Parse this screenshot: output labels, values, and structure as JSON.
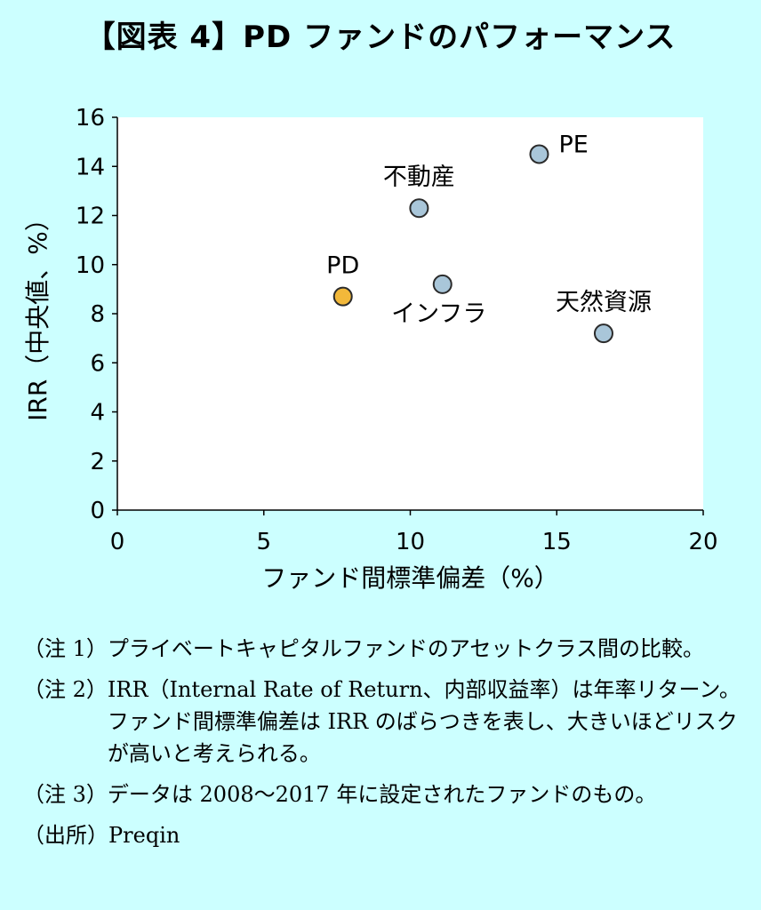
{
  "title": "【図表 4】PD ファンドのパフォーマンス",
  "chart_data": {
    "type": "scatter",
    "xlabel": "ファンド間標準偏差（%）",
    "ylabel": "IRR（中央値、%）",
    "xlim": [
      0,
      20
    ],
    "ylim": [
      0,
      16
    ],
    "xticks": [
      0,
      5,
      10,
      15,
      20
    ],
    "yticks": [
      0,
      2,
      4,
      6,
      8,
      10,
      12,
      14,
      16
    ],
    "grid": false,
    "points": [
      {
        "label": "PE",
        "x": 14.4,
        "y": 14.5,
        "color": "#a9c6d9",
        "label_pos": "upper-right"
      },
      {
        "label": "不動産",
        "x": 10.3,
        "y": 12.3,
        "color": "#a9c6d9",
        "label_pos": "above"
      },
      {
        "label": "PD",
        "x": 7.7,
        "y": 8.7,
        "color": "#f2b83a",
        "label_pos": "above"
      },
      {
        "label": "インフラ",
        "x": 11.1,
        "y": 9.2,
        "color": "#a9c6d9",
        "label_pos": "below"
      },
      {
        "label": "天然資源",
        "x": 16.6,
        "y": 7.2,
        "color": "#a9c6d9",
        "label_pos": "above"
      }
    ]
  },
  "notes": [
    {
      "tag": "（注 1）",
      "text": "プライベートキャピタルファンドのアセットクラス間の比較。"
    },
    {
      "tag": "（注 2）",
      "text": "IRR（Internal Rate of Return、内部収益率）は年率リターン。ファンド間標準偏差は IRR のばらつきを表し、大きいほどリスクが高いと考えられる。"
    },
    {
      "tag": "（注 3）",
      "text": "データは 2008～2017 年に設定されたファンドのもの。"
    },
    {
      "tag": "（出所）",
      "text": "Preqin"
    }
  ]
}
